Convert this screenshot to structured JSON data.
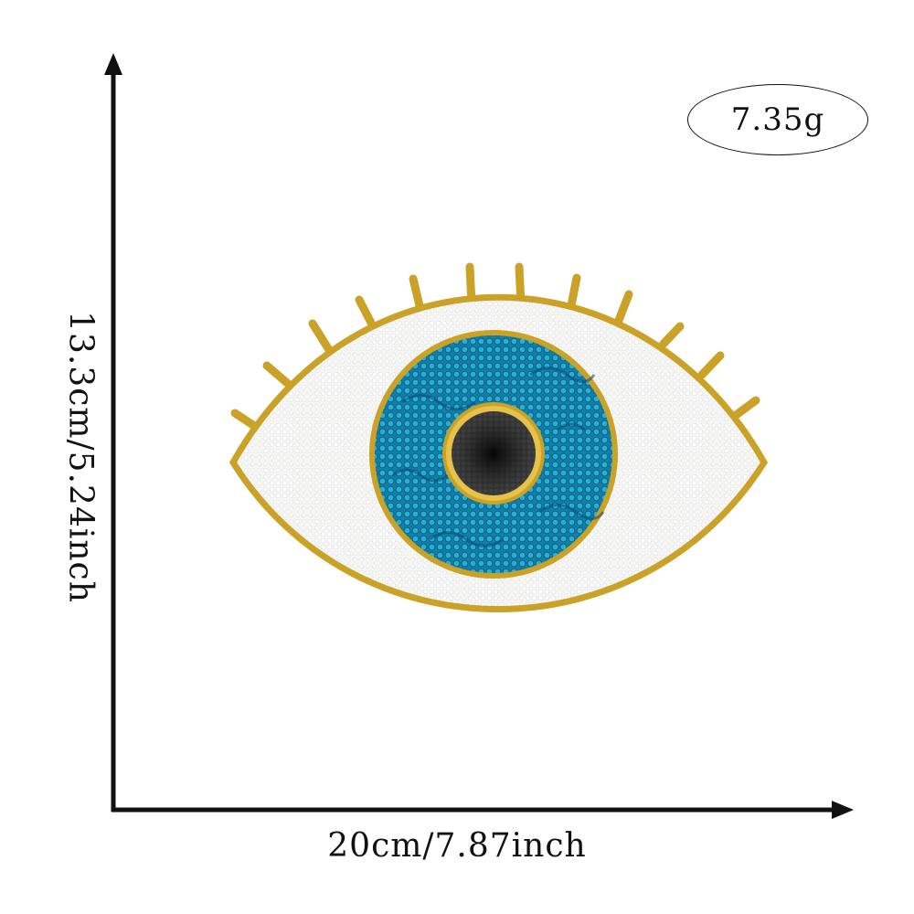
{
  "product": {
    "weight_label": "7.35g",
    "width_label": "20cm/7.87inch",
    "height_label": "13.3cm/5.24inch"
  },
  "colors": {
    "gold_border": "#c9a227",
    "white_fill": "#f4f4f2",
    "iris_blue": "#1aa6c6",
    "iris_dark": "#0d5f8a",
    "pupil_black": "#2b2b2b",
    "axis_black": "#111111"
  },
  "icons": {
    "product_image": "evil-eye-patch-icon",
    "axis_arrows": "arrow-icon"
  }
}
